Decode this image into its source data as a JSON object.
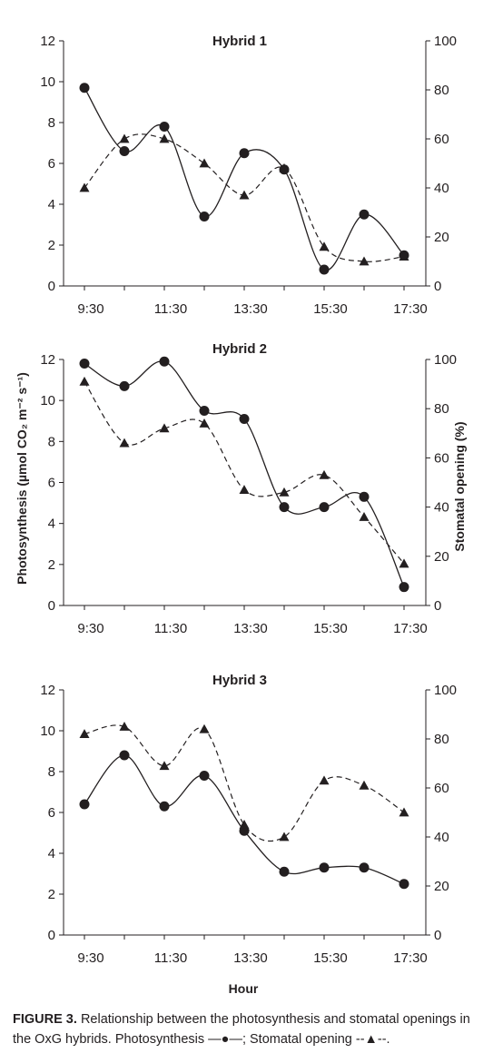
{
  "figure": {
    "ylabel_left": "Photosynthesis (µmol CO₂ m⁻² s⁻¹)",
    "ylabel_right": "Stomatal opening (%)",
    "xlabel": "Hour",
    "caption_label": "FIGURE 3.",
    "caption_text": "Relationship between the photosynthesis and stomatal openings in the OxG hybrids. Photosynthesis —●—; Stomatal opening --▲--."
  },
  "chart_data": [
    {
      "type": "line",
      "title": "Hybrid 1",
      "x": [
        "9:30",
        "10:30",
        "11:30",
        "12:30",
        "13:30",
        "14:30",
        "15:30",
        "16:30",
        "17:30"
      ],
      "xticks": [
        "9:30",
        "11:30",
        "13:30",
        "15:30",
        "17:30"
      ],
      "ylim_left": [
        0,
        12
      ],
      "yticks_left": [
        0,
        2,
        4,
        6,
        8,
        10,
        12
      ],
      "ylim_right": [
        0,
        100
      ],
      "yticks_right": [
        0,
        20,
        40,
        60,
        80,
        100
      ],
      "series": [
        {
          "axis": "left",
          "style": "solid-circle",
          "values": [
            9.7,
            6.6,
            7.8,
            3.4,
            6.5,
            5.7,
            0.8,
            3.5,
            1.5
          ]
        },
        {
          "axis": "right",
          "style": "dashed-triangle",
          "values": [
            40,
            60,
            60,
            50,
            37,
            48,
            16,
            10,
            12
          ]
        }
      ]
    },
    {
      "type": "line",
      "title": "Hybrid 2",
      "x": [
        "9:30",
        "10:30",
        "11:30",
        "12:30",
        "13:30",
        "14:30",
        "15:30",
        "16:30",
        "17:30"
      ],
      "xticks": [
        "9:30",
        "11:30",
        "13:30",
        "15:30",
        "17:30"
      ],
      "ylim_left": [
        0,
        12
      ],
      "yticks_left": [
        0,
        2,
        4,
        6,
        8,
        10,
        12
      ],
      "ylim_right": [
        0,
        100
      ],
      "yticks_right": [
        0,
        20,
        40,
        60,
        80,
        100
      ],
      "series": [
        {
          "axis": "left",
          "style": "solid-circle",
          "values": [
            11.8,
            10.7,
            11.9,
            9.5,
            9.1,
            4.8,
            4.8,
            5.3,
            0.9
          ]
        },
        {
          "axis": "right",
          "style": "dashed-triangle",
          "values": [
            91,
            66,
            72,
            74,
            47,
            46,
            53,
            36,
            17
          ]
        }
      ]
    },
    {
      "type": "line",
      "title": "Hybrid 3",
      "x": [
        "9:30",
        "10:30",
        "11:30",
        "12:30",
        "13:30",
        "14:30",
        "15:30",
        "16:30",
        "17:30"
      ],
      "xticks": [
        "9:30",
        "11:30",
        "13:30",
        "15:30",
        "17:30"
      ],
      "ylim_left": [
        0,
        12
      ],
      "yticks_left": [
        0,
        2,
        4,
        6,
        8,
        10,
        12
      ],
      "ylim_right": [
        0,
        100
      ],
      "yticks_right": [
        0,
        20,
        40,
        60,
        80,
        100
      ],
      "series": [
        {
          "axis": "left",
          "style": "solid-circle",
          "values": [
            6.4,
            8.8,
            6.3,
            7.8,
            5.1,
            3.1,
            3.3,
            3.3,
            2.5
          ]
        },
        {
          "axis": "right",
          "style": "dashed-triangle",
          "values": [
            82,
            85,
            69,
            84,
            45,
            40,
            63,
            61,
            50
          ]
        }
      ]
    }
  ]
}
